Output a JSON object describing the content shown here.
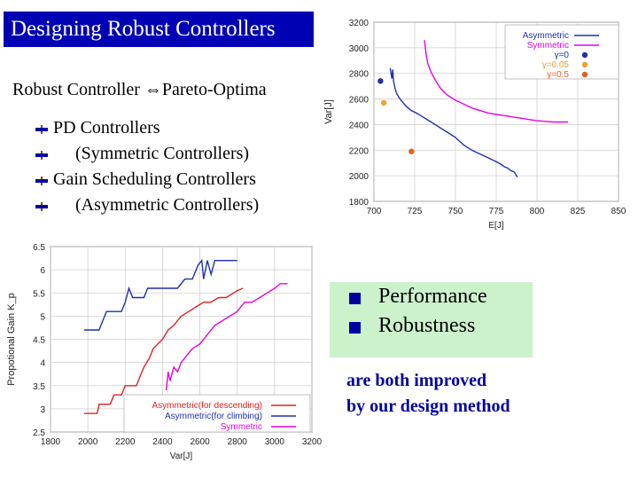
{
  "slide": {
    "title": "Designing Robust Controllers",
    "subtitle": "Robust Controller ⇔Pareto-Optima",
    "bullets": [
      {
        "text": "PD Controllers",
        "indent": false
      },
      {
        "text": "(Symmetric Controllers)",
        "indent": true
      },
      {
        "text": "Gain Scheduling Controllers",
        "indent": false
      },
      {
        "text": "(Asymmetric Controllers)",
        "indent": true
      }
    ],
    "bullet_icon": "arrow-bullet-icon",
    "green_box": {
      "items": [
        "Performance",
        "Robustness"
      ],
      "bullet_icon": "square-bullet-icon",
      "background": "#ccf2cc"
    },
    "conclusion": {
      "line1": "are both improved",
      "line2": "by our design method"
    },
    "title_background": "#0000b4",
    "accent_color": "#0000a0"
  },
  "chart_data": [
    {
      "type": "line",
      "xlabel": "E[J]",
      "ylabel": "Var[J]",
      "xlim": [
        700,
        850
      ],
      "ylim": [
        1800,
        3200
      ],
      "xticks": [
        700,
        725,
        750,
        775,
        800,
        825,
        850
      ],
      "yticks": [
        1800,
        2000,
        2200,
        2400,
        2600,
        2800,
        3000,
        3200
      ],
      "grid": true,
      "legend_position": "top-right",
      "series": [
        {
          "name": "Asymmetric",
          "color": "#1f2fb0",
          "kind": "line",
          "x": [
            710,
            711,
            711.5,
            712,
            713,
            714,
            716,
            718,
            720,
            723,
            726,
            730,
            735,
            740,
            745,
            750,
            755,
            760,
            765,
            770,
            775,
            778,
            780,
            782,
            784,
            786,
            788
          ],
          "y": [
            2840,
            2760,
            2830,
            2740,
            2680,
            2640,
            2600,
            2570,
            2540,
            2510,
            2490,
            2460,
            2420,
            2380,
            2340,
            2300,
            2240,
            2200,
            2170,
            2140,
            2110,
            2090,
            2070,
            2060,
            2040,
            2030,
            1990
          ]
        },
        {
          "name": "Symmetric",
          "color": "#e600e6",
          "kind": "line",
          "x": [
            731,
            732,
            733,
            735,
            738,
            741,
            745,
            750,
            755,
            760,
            765,
            770,
            775,
            780,
            785,
            790,
            795,
            800,
            805,
            810,
            815,
            819
          ],
          "y": [
            3060,
            2950,
            2880,
            2810,
            2740,
            2680,
            2630,
            2590,
            2560,
            2530,
            2510,
            2490,
            2480,
            2470,
            2460,
            2450,
            2440,
            2430,
            2425,
            2420,
            2420,
            2420
          ]
        },
        {
          "name": "γ=0",
          "color": "#1f2fb0",
          "kind": "point",
          "x": [
            704
          ],
          "y": [
            2740
          ]
        },
        {
          "name": "γ=0.05",
          "color": "#f0a030",
          "kind": "point",
          "x": [
            706
          ],
          "y": [
            2570
          ]
        },
        {
          "name": "γ=0.5",
          "color": "#e06020",
          "kind": "point",
          "x": [
            723
          ],
          "y": [
            2190
          ]
        }
      ]
    },
    {
      "type": "line",
      "xlabel": "Var[J]",
      "ylabel": "Propotional Gain K_p",
      "xlim": [
        1800,
        3200
      ],
      "ylim": [
        2.5,
        6.5
      ],
      "xticks": [
        1800,
        2000,
        2200,
        2400,
        2600,
        2800,
        3000,
        3200
      ],
      "yticks": [
        2.5,
        3,
        3.5,
        4,
        4.5,
        5,
        5.5,
        6,
        6.5
      ],
      "grid": true,
      "legend_position": "bottom-right",
      "series": [
        {
          "name": "Asymmetric(for descending)",
          "color": "#e02020",
          "x": [
            1980,
            2050,
            2060,
            2120,
            2140,
            2180,
            2200,
            2260,
            2280,
            2300,
            2330,
            2350,
            2400,
            2430,
            2460,
            2500,
            2540,
            2580,
            2620,
            2660,
            2700,
            2740,
            2780,
            2800,
            2830
          ],
          "y": [
            2.9,
            2.9,
            3.1,
            3.1,
            3.3,
            3.3,
            3.5,
            3.5,
            3.7,
            3.9,
            4.1,
            4.3,
            4.5,
            4.7,
            4.8,
            5.0,
            5.1,
            5.2,
            5.3,
            5.3,
            5.4,
            5.4,
            5.5,
            5.55,
            5.6
          ]
        },
        {
          "name": "Asymmetric(for climbing)",
          "color": "#1f2fb0",
          "x": [
            1980,
            2060,
            2080,
            2100,
            2120,
            2180,
            2200,
            2220,
            2240,
            2300,
            2320,
            2340,
            2400,
            2440,
            2480,
            2520,
            2560,
            2590,
            2610,
            2620,
            2640,
            2660,
            2680,
            2700,
            2740,
            2800
          ],
          "y": [
            4.7,
            4.7,
            4.9,
            5.1,
            5.1,
            5.1,
            5.3,
            5.6,
            5.4,
            5.4,
            5.6,
            5.6,
            5.6,
            5.6,
            5.6,
            5.8,
            5.8,
            6.1,
            6.2,
            5.8,
            6.2,
            5.9,
            6.2,
            6.2,
            6.2,
            6.2
          ]
        },
        {
          "name": "Symmetric",
          "color": "#e600e6",
          "x": [
            2420,
            2430,
            2440,
            2460,
            2480,
            2500,
            2520,
            2560,
            2600,
            2640,
            2680,
            2720,
            2760,
            2800,
            2840,
            2880,
            2920,
            2960,
            3000,
            3030,
            3050,
            3070
          ],
          "y": [
            3.4,
            3.8,
            3.6,
            3.9,
            3.8,
            4.0,
            4.1,
            4.3,
            4.4,
            4.6,
            4.8,
            4.9,
            5.0,
            5.1,
            5.3,
            5.3,
            5.4,
            5.5,
            5.6,
            5.7,
            5.7,
            5.7
          ]
        }
      ]
    }
  ]
}
